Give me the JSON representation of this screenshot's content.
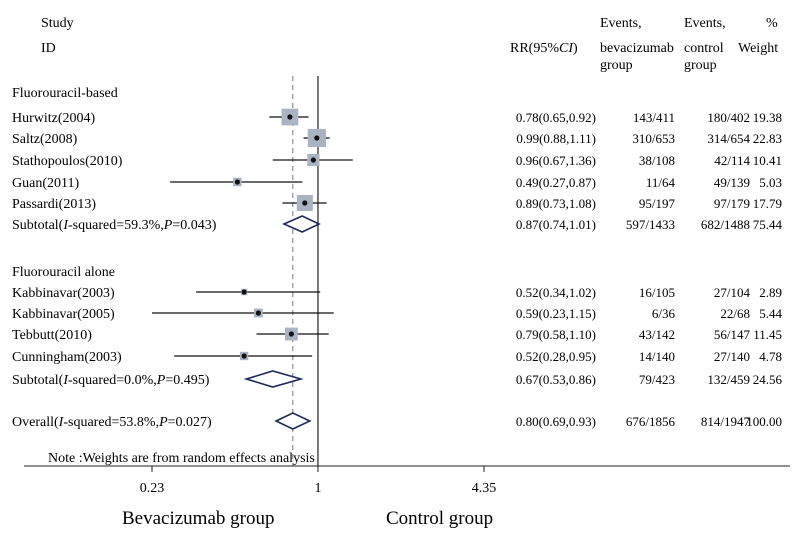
{
  "header": {
    "study_line1": "Study",
    "study_line2": "ID",
    "rr_prefix": "RR(95%",
    "rr_ci": "CI",
    "rr_suffix": ")",
    "ev_bev_line1": "Events,",
    "ev_bev_line2": "bevacizumab",
    "ev_bev_line3": "group",
    "ev_ctrl_line1": "Events,",
    "ev_ctrl_line2": "control",
    "ev_ctrl_line3": "group",
    "weight_line1": "%",
    "weight_line2": "Weight"
  },
  "chart_data": {
    "type": "forest",
    "scale": "log",
    "ticks": [
      {
        "value": 0.23,
        "label": "0.23"
      },
      {
        "value": 1,
        "label": "1"
      },
      {
        "value": 4.35,
        "label": "4.35"
      }
    ],
    "x_range": [
      0.23,
      4.35
    ],
    "null_line": 1,
    "overall_line": 0.8,
    "left_label": "Bevacizumab group",
    "right_label": "Control group",
    "note": "Note :Weights are from random effects analysis",
    "groups": [
      {
        "label": "Fluorouracil-based",
        "studies": [
          {
            "name": "Hurwitz(2004)",
            "rr": 0.78,
            "lo": 0.65,
            "hi": 0.92,
            "rr_text": "0.78(0.65,0.92)",
            "ev_bev": "143/411",
            "ev_ctrl": "180/402",
            "weight": 19.38,
            "weight_text": "19.38"
          },
          {
            "name": "Saltz(2008)",
            "rr": 0.99,
            "lo": 0.88,
            "hi": 1.11,
            "rr_text": "0.99(0.88,1.11)",
            "ev_bev": "310/653",
            "ev_ctrl": "314/654",
            "weight": 22.83,
            "weight_text": "22.83"
          },
          {
            "name": "Stathopoulos(2010)",
            "rr": 0.96,
            "lo": 0.67,
            "hi": 1.36,
            "rr_text": "0.96(0.67,1.36)",
            "ev_bev": "38/108",
            "ev_ctrl": "42/114",
            "weight": 10.41,
            "weight_text": "10.41"
          },
          {
            "name": "Guan(2011)",
            "rr": 0.49,
            "lo": 0.27,
            "hi": 0.87,
            "rr_text": "0.49(0.27,0.87)",
            "ev_bev": "11/64",
            "ev_ctrl": "49/139",
            "weight": 5.03,
            "weight_text": "5.03"
          },
          {
            "name": "Passardi(2013)",
            "rr": 0.89,
            "lo": 0.73,
            "hi": 1.08,
            "rr_text": "0.89(0.73,1.08)",
            "ev_bev": "95/197",
            "ev_ctrl": "97/179",
            "weight": 17.79,
            "weight_text": "17.79"
          }
        ],
        "subtotal": {
          "label_pre": "Subtotal(",
          "label_i": "I",
          "label_mid": "-squared=59.3%,",
          "label_p": "P",
          "label_post": "=0.043)",
          "rr": 0.87,
          "lo": 0.74,
          "hi": 1.01,
          "rr_text": "0.87(0.74,1.01)",
          "ev_bev": "597/1433",
          "ev_ctrl": "682/1488",
          "weight_text": "75.44"
        }
      },
      {
        "label": "Fluorouracil alone",
        "studies": [
          {
            "name": "Kabbinavar(2003)",
            "rr": 0.52,
            "lo": 0.34,
            "hi": 1.02,
            "rr_text": "0.52(0.34,1.02)",
            "ev_bev": "16/105",
            "ev_ctrl": "27/104",
            "weight": 2.89,
            "weight_text": "2.89"
          },
          {
            "name": "Kabbinavar(2005)",
            "rr": 0.59,
            "lo": 0.23,
            "hi": 1.15,
            "rr_text": "0.59(0.23,1.15)",
            "ev_bev": "6/36",
            "ev_ctrl": "22/68",
            "weight": 5.44,
            "weight_text": "5.44"
          },
          {
            "name": "Tebbutt(2010)",
            "rr": 0.79,
            "lo": 0.58,
            "hi": 1.1,
            "rr_text": "0.79(0.58,1.10)",
            "ev_bev": "43/142",
            "ev_ctrl": "56/147",
            "weight": 11.45,
            "weight_text": "11.45"
          },
          {
            "name": "Cunningham(2003)",
            "rr": 0.52,
            "lo": 0.28,
            "hi": 0.95,
            "rr_text": "0.52(0.28,0.95)",
            "ev_bev": "14/140",
            "ev_ctrl": "27/140",
            "weight": 4.78,
            "weight_text": "4.78"
          }
        ],
        "subtotal": {
          "label_pre": "Subtotal(",
          "label_i": "I",
          "label_mid": "-squared=0.0%,",
          "label_p": "P",
          "label_post": "=0.495)",
          "rr": 0.67,
          "lo": 0.53,
          "hi": 0.86,
          "rr_text": "0.67(0.53,0.86)",
          "ev_bev": "79/423",
          "ev_ctrl": "132/459",
          "weight_text": "24.56"
        }
      }
    ],
    "overall": {
      "label_pre": "Overall(",
      "label_i": "I",
      "label_mid": "-squared=53.8%,",
      "label_p": "P",
      "label_post": "=0.027)",
      "rr": 0.8,
      "lo": 0.69,
      "hi": 0.93,
      "rr_text": "0.80(0.69,0.93)",
      "ev_bev": "676/1856",
      "ev_ctrl": "814/1947",
      "weight_text": "100.00"
    }
  }
}
